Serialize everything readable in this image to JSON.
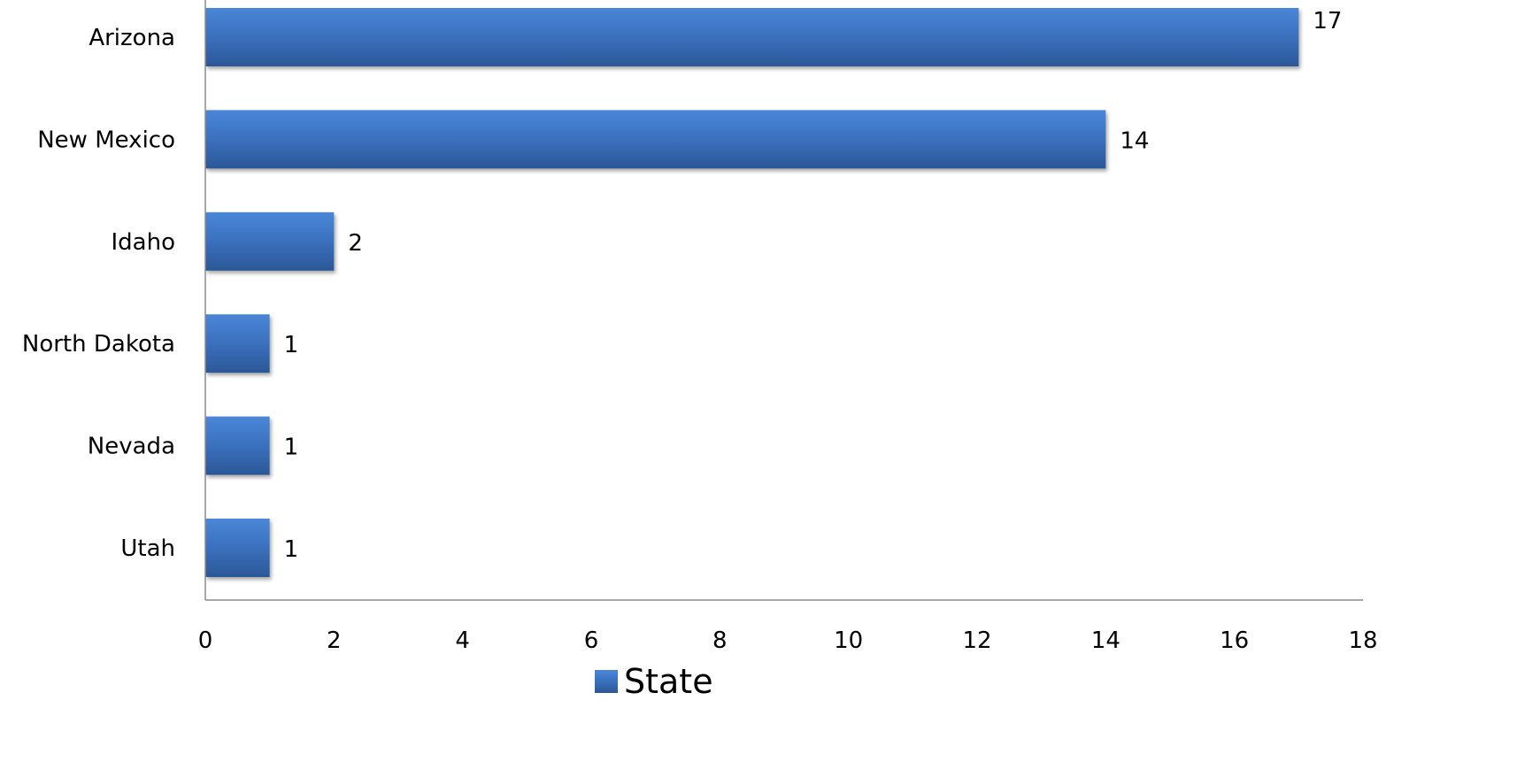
{
  "chart_data": {
    "type": "bar",
    "orientation": "horizontal",
    "categories": [
      "Arizona",
      "New Mexico",
      "Idaho",
      "North Dakota",
      "Nevada",
      "Utah"
    ],
    "series": [
      {
        "name": "State",
        "values": [
          17,
          14,
          2,
          1,
          1,
          1
        ],
        "color": "#3a6fb7"
      }
    ],
    "xlim": [
      0,
      18
    ],
    "xticks": [
      0,
      2,
      4,
      6,
      8,
      10,
      12,
      14,
      16,
      18
    ],
    "grid": false,
    "legend_position": "bottom"
  }
}
